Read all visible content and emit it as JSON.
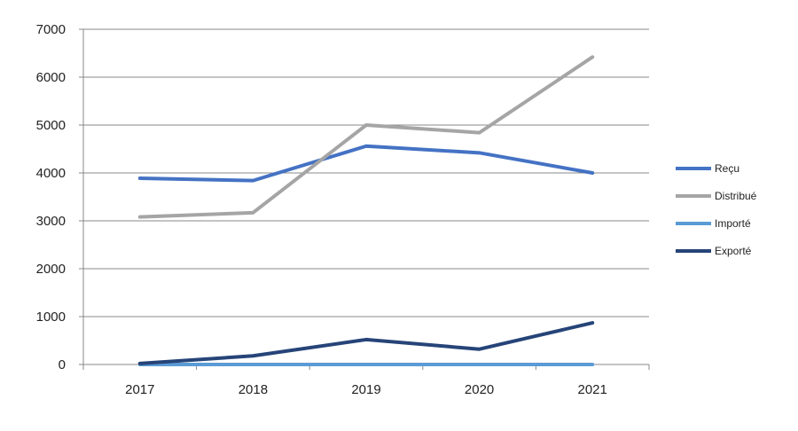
{
  "chart_data": {
    "type": "line",
    "x": [
      "2017",
      "2018",
      "2019",
      "2020",
      "2021"
    ],
    "ylim": [
      0,
      7000
    ],
    "yticks": [
      "0",
      "1000",
      "2000",
      "3000",
      "4000",
      "5000",
      "6000",
      "7000"
    ],
    "grid": true,
    "legend_position": "right",
    "series": [
      {
        "name": "Reçu",
        "color": "#4472C4",
        "values": [
          3890,
          3840,
          4560,
          4420,
          4000
        ]
      },
      {
        "name": "Distribué",
        "color": "#A5A5A5",
        "values": [
          3080,
          3170,
          5000,
          4840,
          6420
        ]
      },
      {
        "name": "Importé",
        "color": "#5B9BD5",
        "values": [
          0,
          0,
          0,
          0,
          0
        ]
      },
      {
        "name": "Exporté",
        "color": "#264478",
        "values": [
          20,
          180,
          520,
          320,
          870
        ]
      }
    ]
  }
}
